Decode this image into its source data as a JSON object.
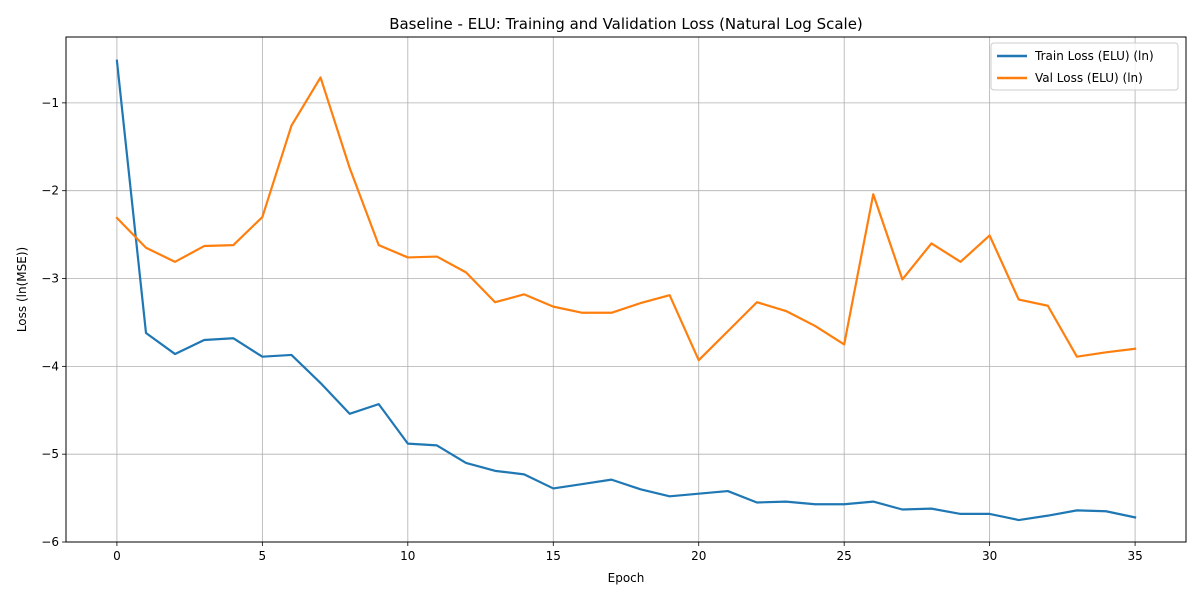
{
  "chart_data": {
    "type": "line",
    "title": "Baseline - ELU: Training and Validation Loss (Natural Log Scale)",
    "xlabel": "Epoch",
    "ylabel": "Loss (ln(MSE))",
    "xlim": [
      -1.75,
      36.75
    ],
    "ylim": [
      -6.0,
      -0.25
    ],
    "xticks": [
      0,
      5,
      10,
      15,
      20,
      25,
      30,
      35
    ],
    "xtick_labels": [
      "0",
      "5",
      "10",
      "15",
      "20",
      "25",
      "30",
      "35"
    ],
    "yticks": [
      -6,
      -5,
      -4,
      -3,
      -2,
      -1
    ],
    "ytick_labels": [
      "−6",
      "−5",
      "−4",
      "−3",
      "−2",
      "−1"
    ],
    "grid": true,
    "legend_position": "top-right",
    "x": [
      0,
      1,
      2,
      3,
      4,
      5,
      6,
      7,
      8,
      9,
      10,
      11,
      12,
      13,
      14,
      15,
      16,
      17,
      18,
      19,
      20,
      21,
      22,
      23,
      24,
      25,
      26,
      27,
      28,
      29,
      30,
      31,
      32,
      33,
      34,
      35
    ],
    "series": [
      {
        "name": "Train Loss (ELU) (ln)",
        "color": "#1f77b4",
        "values": [
          -0.52,
          -3.62,
          -3.86,
          -3.7,
          -3.68,
          -3.89,
          -3.87,
          -4.19,
          -4.54,
          -4.43,
          -4.88,
          -4.9,
          -5.1,
          -5.19,
          -5.23,
          -5.39,
          -5.34,
          -5.29,
          -5.4,
          -5.48,
          -5.45,
          -5.42,
          -5.55,
          -5.54,
          -5.57,
          -5.57,
          -5.54,
          -5.63,
          -5.62,
          -5.68,
          -5.68,
          -5.75,
          -5.7,
          -5.64,
          -5.65,
          -5.72
        ]
      },
      {
        "name": "Val Loss (ELU) (ln)",
        "color": "#ff7f0e",
        "values": [
          -2.31,
          -2.65,
          -2.81,
          -2.63,
          -2.62,
          -2.3,
          -1.26,
          -0.71,
          -1.74,
          -2.62,
          -2.76,
          -2.75,
          -2.93,
          -3.27,
          -3.18,
          -3.32,
          -3.39,
          -3.39,
          -3.28,
          -3.19,
          -3.93,
          -3.6,
          -3.27,
          -3.37,
          -3.54,
          -3.75,
          -2.04,
          -3.01,
          -2.6,
          -2.81,
          -2.51,
          -3.24,
          -3.31,
          -3.89,
          -3.84,
          -3.8
        ]
      }
    ]
  }
}
